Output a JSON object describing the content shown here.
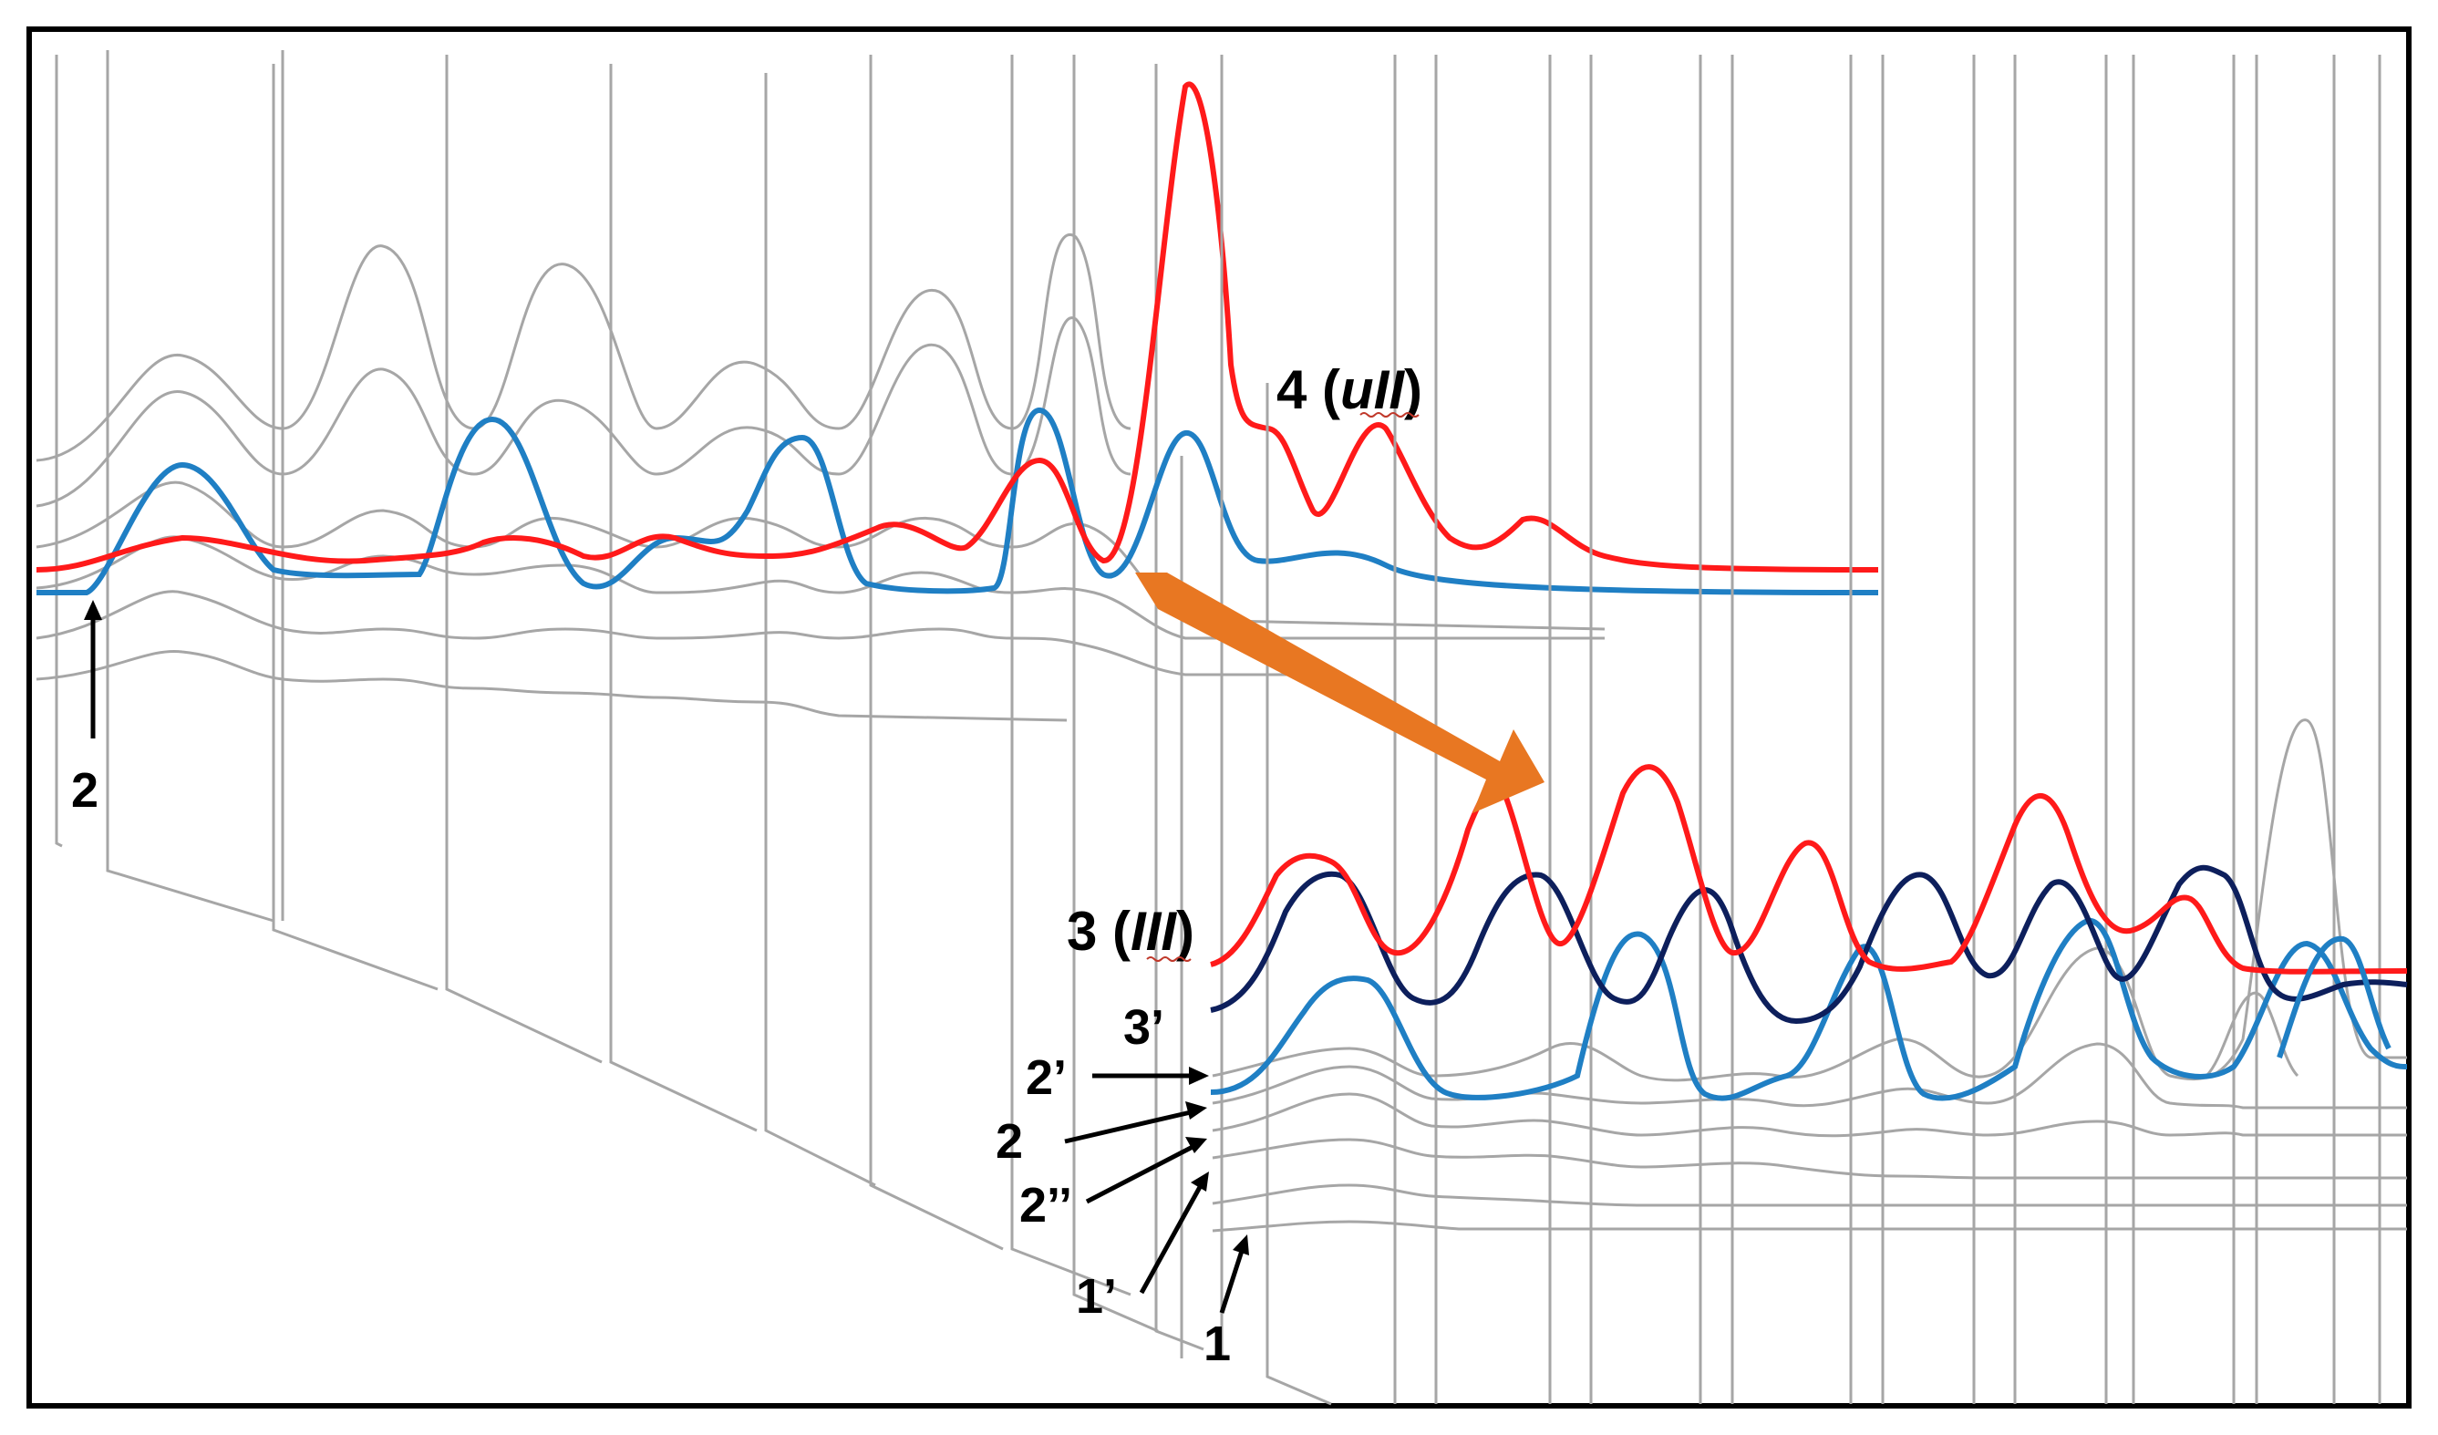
{
  "colors": {
    "background": "#ffffff",
    "border": "#000000",
    "grey_traces": "#a6a6a6",
    "red_traces": "#ff1a1a",
    "light_blue_traces": "#1f7fc4",
    "navy_trace": "#0d1f5c",
    "arrow_orange": "#e87722",
    "annotation_arrows": "#000000"
  },
  "labels": {
    "label_4_prefix": "4 (",
    "label_4_italic": "uII",
    "label_4_suffix": ")",
    "label_3_prefix": "3 (",
    "label_3_italic": "III",
    "label_3_suffix": ")",
    "label_3prime": "3’",
    "label_2prime": "2’",
    "label_2": "2",
    "label_2dprime": "2’’",
    "label_1prime": "1’",
    "label_1": "1",
    "label_2_left": "2"
  },
  "icons": {
    "transition_arrow": "orange-arrow-icon",
    "annotation_arrow": "black-arrow-icon"
  }
}
